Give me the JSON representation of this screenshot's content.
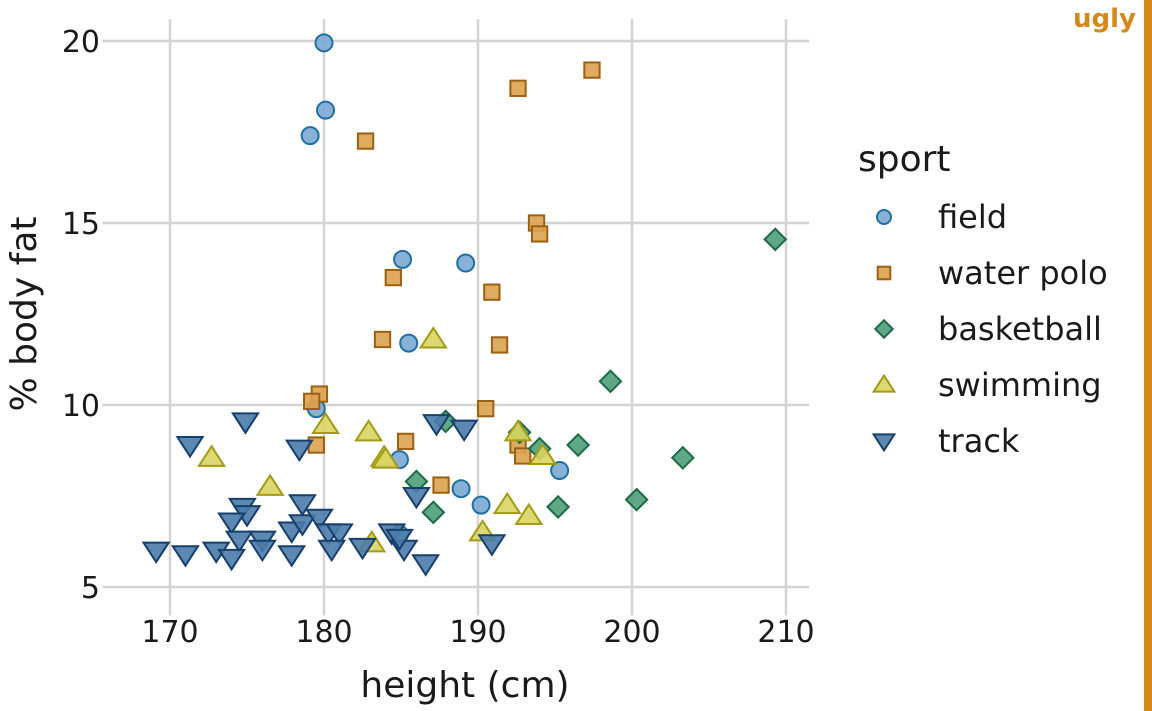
{
  "chart_data": {
    "type": "scatter",
    "xlabel": "height (cm)",
    "ylabel": "% body fat",
    "xlim": [
      166,
      211.5
    ],
    "ylim": [
      4.6,
      20.6
    ],
    "xticks": [
      170,
      180,
      190,
      200,
      210
    ],
    "yticks": [
      5,
      10,
      15,
      20
    ],
    "xtick_labels": [
      "170",
      "180",
      "190",
      "200",
      "210"
    ],
    "ytick_labels": [
      "5",
      "10",
      "15",
      "20"
    ],
    "grid": true,
    "legend": {
      "title": "sport",
      "placement": "right"
    },
    "corner_label": "ugly",
    "corner_color": "#D4891A",
    "series": [
      {
        "name": "field",
        "shape": "circle",
        "fill": "#7AA8D2",
        "stroke": "#1F6FA5",
        "points": [
          [
            180.0,
            19.95
          ],
          [
            180.1,
            18.1
          ],
          [
            179.1,
            17.4
          ],
          [
            185.1,
            14.0
          ],
          [
            189.2,
            13.9
          ],
          [
            185.5,
            11.7
          ],
          [
            179.5,
            9.9
          ],
          [
            184.9,
            8.5
          ],
          [
            188.9,
            7.7
          ],
          [
            190.2,
            7.25
          ],
          [
            195.3,
            8.2
          ],
          [
            184.9,
            6.45
          ]
        ]
      },
      {
        "name": "water polo",
        "shape": "square",
        "fill": "#DBA24F",
        "stroke": "#9A6112",
        "points": [
          [
            197.4,
            19.2
          ],
          [
            192.6,
            18.7
          ],
          [
            182.7,
            17.25
          ],
          [
            193.8,
            15.0
          ],
          [
            194.0,
            14.7
          ],
          [
            184.5,
            13.5
          ],
          [
            190.9,
            13.1
          ],
          [
            183.8,
            11.8
          ],
          [
            191.4,
            11.65
          ],
          [
            179.7,
            10.3
          ],
          [
            179.2,
            10.1
          ],
          [
            190.5,
            9.9
          ],
          [
            179.5,
            8.9
          ],
          [
            185.3,
            9.0
          ],
          [
            192.6,
            8.9
          ],
          [
            192.9,
            8.6
          ],
          [
            187.6,
            7.8
          ]
        ]
      },
      {
        "name": "basketball",
        "shape": "diamond",
        "fill": "#4E9E7A",
        "stroke": "#1E6A46",
        "points": [
          [
            209.3,
            14.55
          ],
          [
            198.6,
            10.65
          ],
          [
            187.9,
            9.55
          ],
          [
            192.7,
            9.25
          ],
          [
            194.0,
            8.8
          ],
          [
            196.5,
            8.9
          ],
          [
            203.3,
            8.55
          ],
          [
            186.0,
            7.9
          ],
          [
            187.1,
            7.05
          ],
          [
            195.2,
            7.2
          ],
          [
            200.3,
            7.4
          ]
        ]
      },
      {
        "name": "swimming",
        "shape": "triangle-up",
        "fill": "#D9D462",
        "stroke": "#A39A16",
        "points": [
          [
            187.1,
            11.8
          ],
          [
            180.1,
            9.45
          ],
          [
            172.7,
            8.55
          ],
          [
            182.9,
            9.25
          ],
          [
            183.9,
            8.55
          ],
          [
            184.0,
            8.5
          ],
          [
            194.2,
            8.6
          ],
          [
            192.6,
            9.25
          ],
          [
            176.5,
            7.75
          ],
          [
            191.9,
            7.25
          ],
          [
            193.3,
            6.95
          ],
          [
            190.3,
            6.5
          ],
          [
            183.1,
            6.2
          ]
        ]
      },
      {
        "name": "track",
        "shape": "triangle-down",
        "fill": "#4A7BAA",
        "stroke": "#163F6C",
        "points": [
          [
            174.9,
            9.55
          ],
          [
            171.3,
            8.9
          ],
          [
            178.4,
            8.8
          ],
          [
            187.3,
            9.5
          ],
          [
            189.1,
            9.35
          ],
          [
            186.0,
            7.5
          ],
          [
            174.7,
            7.2
          ],
          [
            175.0,
            7.0
          ],
          [
            178.6,
            7.3
          ],
          [
            174.0,
            6.8
          ],
          [
            174.5,
            6.3
          ],
          [
            176.0,
            6.3
          ],
          [
            177.9,
            6.55
          ],
          [
            178.6,
            6.75
          ],
          [
            179.7,
            6.9
          ],
          [
            180.3,
            6.5
          ],
          [
            181.0,
            6.5
          ],
          [
            184.4,
            6.5
          ],
          [
            169.1,
            6.0
          ],
          [
            171.0,
            5.9
          ],
          [
            173.0,
            6.0
          ],
          [
            174.0,
            5.8
          ],
          [
            176.0,
            6.05
          ],
          [
            177.9,
            5.9
          ],
          [
            180.5,
            6.05
          ],
          [
            182.5,
            6.1
          ],
          [
            185.2,
            6.05
          ],
          [
            186.6,
            5.65
          ],
          [
            190.9,
            6.2
          ],
          [
            184.9,
            6.35
          ]
        ]
      }
    ]
  }
}
